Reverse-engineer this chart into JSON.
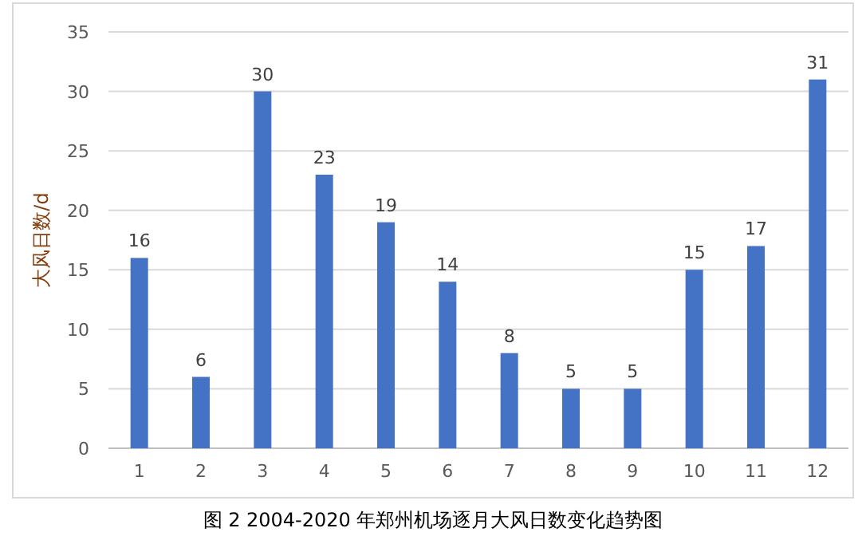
{
  "chart_data": {
    "type": "bar",
    "title": "图 2 2004-2020 年郑州机场逐月大风日数变化趋势图",
    "ylabel": "大风日数/d",
    "categories": [
      "1",
      "2",
      "3",
      "4",
      "5",
      "6",
      "7",
      "8",
      "9",
      "10",
      "11",
      "12"
    ],
    "values": [
      16,
      6,
      30,
      23,
      19,
      14,
      8,
      5,
      5,
      15,
      17,
      31
    ],
    "color": "#4472c4",
    "ylim": [
      0,
      35
    ],
    "yticks": [
      0,
      5,
      10,
      15,
      20,
      25,
      30,
      35
    ],
    "grid": "y",
    "data_labels": true
  }
}
